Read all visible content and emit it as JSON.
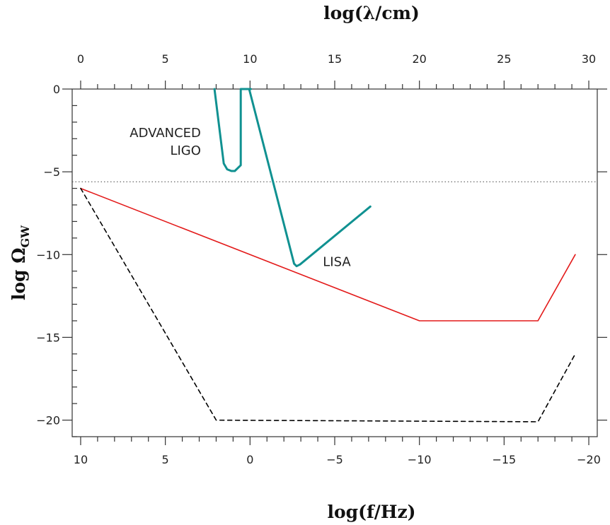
{
  "chart_data": {
    "type": "line",
    "title": "",
    "xlabel": "log(f/Hz)",
    "x2label": "log(λ/cm)",
    "ylabel": "log Ω",
    "ylabel_sub": "GW",
    "xlim": [
      10.5,
      -20.5
    ],
    "ylim": [
      -21,
      0
    ],
    "x2lim": [
      -0.5,
      30.5
    ],
    "xticks": [
      10,
      5,
      0,
      -5,
      -10,
      -15,
      -20
    ],
    "xtick_labels": [
      "10",
      "5",
      "0",
      "−5",
      "−10",
      "−15",
      "−20"
    ],
    "x2ticks": [
      0,
      5,
      10,
      15,
      20,
      25,
      30
    ],
    "x2tick_labels": [
      "0",
      "5",
      "10",
      "15",
      "20",
      "25",
      "30"
    ],
    "yticks": [
      0,
      -5,
      -10,
      -15,
      -20
    ],
    "ytick_labels": [
      "0",
      "−5",
      "−10",
      "−15",
      "−20"
    ],
    "grid": false,
    "reference_line": {
      "y": -5.6,
      "style": "dotted"
    },
    "series": [
      {
        "id": "ligo",
        "color": "#109191",
        "style": "solid",
        "x": [
          2.1,
          1.55,
          1.35,
          1.1,
          0.9,
          0.55,
          0.55,
          0.55,
          -0.05
        ],
        "y": [
          0,
          -4.5,
          -4.85,
          -4.95,
          -4.95,
          -4.6,
          -2.0,
          0,
          0
        ]
      },
      {
        "id": "lisa",
        "color": "#109191",
        "style": "solid",
        "x": [
          0.05,
          -2.6,
          -2.75,
          -2.95,
          -7.1
        ],
        "y": [
          0,
          -10.55,
          -10.7,
          -10.6,
          -7.1
        ]
      },
      {
        "id": "red-curve",
        "color": "#e31a1a",
        "style": "solid",
        "x": [
          10,
          -10,
          -17,
          -19.2
        ],
        "y": [
          -6,
          -14,
          -14,
          -10
        ]
      },
      {
        "id": "dashed-curve",
        "color": "#000000",
        "style": "dashed",
        "x": [
          10,
          2,
          -17,
          -19.2
        ],
        "y": [
          -6,
          -20,
          -20.1,
          -16
        ]
      }
    ],
    "annotations": [
      {
        "id": "ligo-label",
        "lines": [
          "ADVANCED",
          "LIGO"
        ],
        "x": 2.9,
        "y": -2.9,
        "align": "end"
      },
      {
        "id": "lisa-label",
        "lines": [
          "LISA"
        ],
        "x": -4.3,
        "y": -10.7,
        "align": "start"
      }
    ]
  }
}
